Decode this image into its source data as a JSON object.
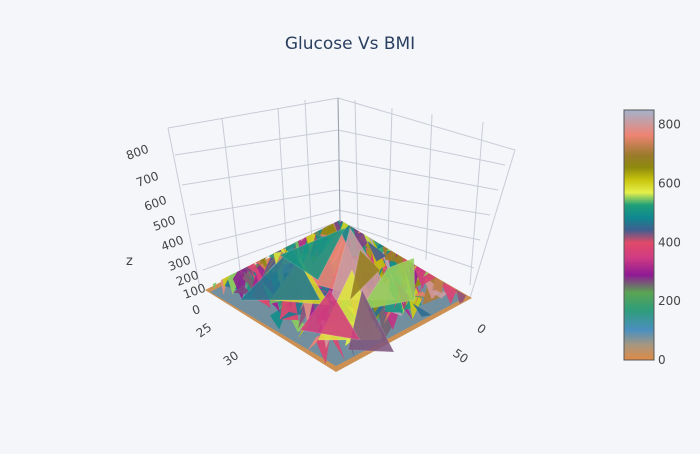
{
  "chart_data": {
    "type": "surface",
    "title": "Glucose Vs BMI",
    "axes": {
      "z": {
        "label": "z",
        "ticks": [
          "800",
          "700",
          "600",
          "500",
          "400",
          "300",
          "200",
          "100",
          "0"
        ],
        "range": [
          0,
          850
        ]
      },
      "y": {
        "label": "",
        "ticks": [
          "25",
          "30"
        ]
      },
      "x": {
        "label": "",
        "ticks": [
          "0",
          "50"
        ]
      }
    },
    "colorbar": {
      "range": [
        0,
        850
      ],
      "ticks": [
        "800",
        "600",
        "400",
        "200",
        "0"
      ]
    },
    "colorscale": [
      [
        0.0,
        "#e08a45"
      ],
      [
        0.06,
        "#a7977f"
      ],
      [
        0.12,
        "#4a8fc0"
      ],
      [
        0.2,
        "#2f9d7a"
      ],
      [
        0.27,
        "#5aa453"
      ],
      [
        0.34,
        "#8e1a94"
      ],
      [
        0.41,
        "#d03c82"
      ],
      [
        0.47,
        "#e04a68"
      ],
      [
        0.52,
        "#3f5f8f"
      ],
      [
        0.57,
        "#0f8890"
      ],
      [
        0.62,
        "#1f9f78"
      ],
      [
        0.67,
        "#e6f04a"
      ],
      [
        0.72,
        "#c8c40e"
      ],
      [
        0.77,
        "#8e8a0e"
      ],
      [
        0.82,
        "#9b7a2c"
      ],
      [
        0.9,
        "#ee8474"
      ],
      [
        1.0,
        "#a4b2cc"
      ]
    ],
    "grid": true
  }
}
